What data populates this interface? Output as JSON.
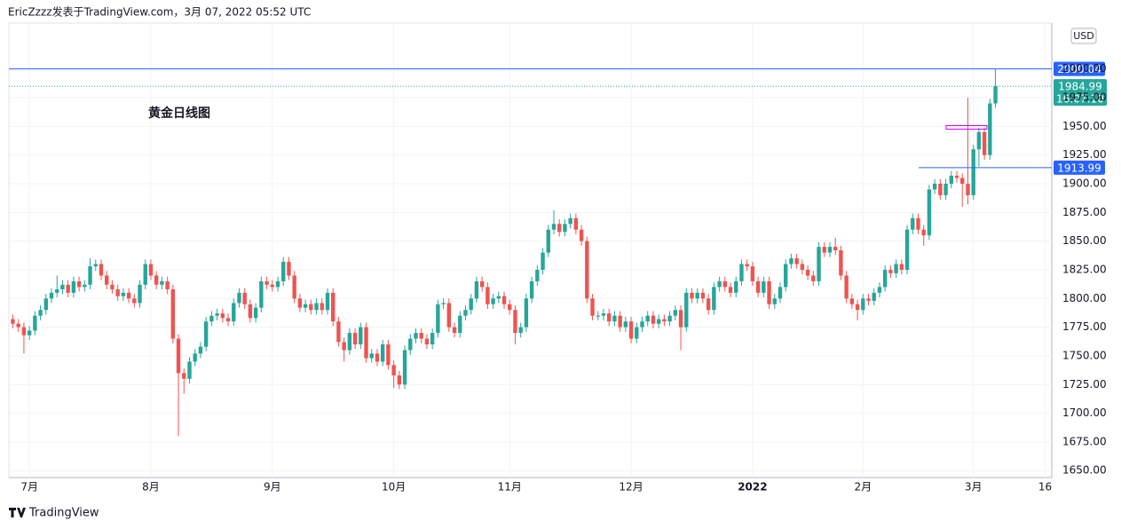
{
  "header": "EricZzzz发表于TradingView.com，3月 07, 2022 05:52 UTC",
  "footer": "TradingView",
  "chart_data": {
    "type": "candlestick",
    "title": "黄金日线图",
    "currency": "USD",
    "up_color": "#26a69a",
    "down_color": "#ef5350",
    "open": [
      1782,
      1778,
      1775,
      1768,
      1772,
      1785,
      1790,
      1800,
      1805,
      1808,
      1812,
      1805,
      1815,
      1810,
      1812,
      1828,
      1830,
      1820,
      1812,
      1808,
      1802,
      1805,
      1800,
      1796,
      1812,
      1830,
      1820,
      1812,
      1815,
      1808,
      1765,
      1735,
      1730,
      1745,
      1752,
      1758,
      1780,
      1785,
      1787,
      1783,
      1780,
      1796,
      1805,
      1795,
      1783,
      1792,
      1815,
      1812,
      1810,
      1815,
      1832,
      1820,
      1800,
      1792,
      1795,
      1790,
      1796,
      1790,
      1805,
      1780,
      1762,
      1755,
      1770,
      1760,
      1775,
      1748,
      1752,
      1745,
      1760,
      1742,
      1733,
      1725,
      1755,
      1765,
      1770,
      1765,
      1760,
      1770,
      1795,
      1796,
      1775,
      1770,
      1785,
      1790,
      1800,
      1815,
      1810,
      1795,
      1800,
      1802,
      1795,
      1790,
      1770,
      1775,
      1800,
      1815,
      1825,
      1840,
      1860,
      1865,
      1858,
      1865,
      1870,
      1860,
      1850,
      1800,
      1785,
      1785,
      1787,
      1780,
      1785,
      1775,
      1780,
      1765,
      1775,
      1780,
      1785,
      1778,
      1782,
      1780,
      1785,
      1790,
      1775,
      1805,
      1800,
      1805,
      1800,
      1790,
      1810,
      1815,
      1810,
      1805,
      1815,
      1830,
      1828,
      1815,
      1805,
      1815,
      1795,
      1800,
      1810,
      1830,
      1835,
      1830,
      1825,
      1820,
      1815,
      1845,
      1840,
      1845,
      1842,
      1820,
      1800,
      1795,
      1790,
      1800,
      1798,
      1805,
      1810,
      1825,
      1822,
      1830,
      1825,
      1860,
      1870,
      1860,
      1855,
      1895,
      1900,
      1890,
      1900,
      1907,
      1905,
      1900,
      1890,
      1930,
      1945,
      1925,
      1970
    ],
    "high": [
      1786,
      1782,
      1779,
      1776,
      1789,
      1794,
      1804,
      1809,
      1820,
      1816,
      1816,
      1819,
      1819,
      1816,
      1835,
      1834,
      1834,
      1824,
      1816,
      1812,
      1809,
      1809,
      1804,
      1816,
      1834,
      1834,
      1824,
      1819,
      1819,
      1812,
      1769,
      1739,
      1749,
      1756,
      1762,
      1784,
      1789,
      1791,
      1791,
      1787,
      1800,
      1809,
      1809,
      1799,
      1796,
      1819,
      1819,
      1816,
      1819,
      1836,
      1836,
      1824,
      1804,
      1799,
      1799,
      1800,
      1800,
      1809,
      1809,
      1784,
      1766,
      1774,
      1774,
      1779,
      1779,
      1756,
      1756,
      1764,
      1764,
      1746,
      1737,
      1759,
      1769,
      1774,
      1774,
      1769,
      1774,
      1799,
      1800,
      1800,
      1779,
      1789,
      1794,
      1804,
      1819,
      1819,
      1814,
      1804,
      1806,
      1806,
      1799,
      1794,
      1779,
      1804,
      1819,
      1829,
      1844,
      1864,
      1877,
      1869,
      1869,
      1874,
      1874,
      1864,
      1854,
      1804,
      1789,
      1791,
      1791,
      1789,
      1789,
      1784,
      1784,
      1779,
      1784,
      1789,
      1789,
      1786,
      1786,
      1789,
      1794,
      1794,
      1809,
      1809,
      1809,
      1809,
      1804,
      1814,
      1819,
      1819,
      1814,
      1819,
      1834,
      1834,
      1832,
      1819,
      1819,
      1819,
      1804,
      1814,
      1834,
      1839,
      1839,
      1834,
      1829,
      1824,
      1849,
      1849,
      1849,
      1853,
      1846,
      1824,
      1804,
      1799,
      1804,
      1804,
      1809,
      1814,
      1829,
      1829,
      1834,
      1834,
      1864,
      1874,
      1874,
      1864,
      1899,
      1904,
      1904,
      1904,
      1911,
      1911,
      1909,
      1975,
      1934,
      1949,
      1949,
      1974,
      2000
    ],
    "low": [
      1774,
      1771,
      1752,
      1764,
      1768,
      1781,
      1786,
      1796,
      1801,
      1804,
      1801,
      1801,
      1806,
      1806,
      1808,
      1824,
      1816,
      1808,
      1804,
      1798,
      1798,
      1796,
      1792,
      1792,
      1808,
      1816,
      1808,
      1808,
      1804,
      1761,
      1680,
      1717,
      1726,
      1741,
      1748,
      1754,
      1776,
      1781,
      1779,
      1776,
      1776,
      1792,
      1791,
      1779,
      1779,
      1788,
      1808,
      1806,
      1806,
      1811,
      1816,
      1796,
      1788,
      1788,
      1786,
      1786,
      1786,
      1786,
      1776,
      1758,
      1745,
      1751,
      1756,
      1756,
      1744,
      1744,
      1741,
      1741,
      1738,
      1722,
      1721,
      1721,
      1751,
      1761,
      1761,
      1756,
      1756,
      1766,
      1791,
      1771,
      1766,
      1766,
      1781,
      1786,
      1796,
      1806,
      1791,
      1791,
      1796,
      1791,
      1786,
      1760,
      1766,
      1771,
      1796,
      1811,
      1821,
      1836,
      1856,
      1854,
      1854,
      1861,
      1856,
      1846,
      1796,
      1781,
      1781,
      1781,
      1776,
      1776,
      1771,
      1771,
      1761,
      1761,
      1771,
      1776,
      1774,
      1774,
      1776,
      1776,
      1781,
      1755,
      1771,
      1796,
      1796,
      1796,
      1786,
      1786,
      1806,
      1806,
      1801,
      1801,
      1811,
      1824,
      1811,
      1801,
      1801,
      1791,
      1791,
      1796,
      1806,
      1826,
      1826,
      1821,
      1816,
      1811,
      1811,
      1836,
      1836,
      1838,
      1816,
      1796,
      1791,
      1781,
      1786,
      1794,
      1794,
      1801,
      1806,
      1818,
      1818,
      1821,
      1821,
      1856,
      1856,
      1846,
      1851,
      1891,
      1886,
      1886,
      1896,
      1901,
      1880,
      1882,
      1886,
      1915,
      1921,
      1921,
      1966
    ],
    "close": [
      1778,
      1775,
      1768,
      1772,
      1785,
      1790,
      1800,
      1805,
      1808,
      1812,
      1805,
      1815,
      1810,
      1812,
      1828,
      1830,
      1820,
      1812,
      1808,
      1802,
      1805,
      1800,
      1796,
      1812,
      1830,
      1820,
      1812,
      1815,
      1808,
      1765,
      1735,
      1730,
      1745,
      1752,
      1758,
      1780,
      1785,
      1787,
      1783,
      1780,
      1796,
      1805,
      1795,
      1783,
      1792,
      1815,
      1812,
      1810,
      1815,
      1832,
      1820,
      1800,
      1792,
      1795,
      1790,
      1796,
      1790,
      1805,
      1780,
      1762,
      1755,
      1770,
      1760,
      1775,
      1748,
      1752,
      1745,
      1760,
      1742,
      1733,
      1725,
      1755,
      1765,
      1770,
      1765,
      1760,
      1770,
      1795,
      1796,
      1775,
      1770,
      1785,
      1790,
      1800,
      1815,
      1810,
      1795,
      1800,
      1802,
      1795,
      1790,
      1770,
      1775,
      1800,
      1815,
      1825,
      1840,
      1860,
      1865,
      1858,
      1865,
      1870,
      1860,
      1850,
      1800,
      1785,
      1785,
      1787,
      1780,
      1785,
      1775,
      1780,
      1765,
      1775,
      1780,
      1785,
      1778,
      1782,
      1780,
      1785,
      1790,
      1775,
      1805,
      1800,
      1805,
      1800,
      1790,
      1810,
      1815,
      1810,
      1805,
      1815,
      1830,
      1828,
      1815,
      1805,
      1815,
      1795,
      1800,
      1810,
      1830,
      1835,
      1830,
      1825,
      1820,
      1815,
      1845,
      1840,
      1845,
      1842,
      1820,
      1800,
      1795,
      1790,
      1800,
      1798,
      1805,
      1810,
      1825,
      1822,
      1830,
      1825,
      1860,
      1870,
      1860,
      1855,
      1895,
      1900,
      1890,
      1900,
      1907,
      1905,
      1900,
      1890,
      1930,
      1945,
      1925,
      1970,
      1985
    ],
    "ylim": [
      1644,
      2040
    ],
    "yticks": [
      {
        "value": 1650,
        "label": "1650.00"
      },
      {
        "value": 1675,
        "label": "1675.00"
      },
      {
        "value": 1700,
        "label": "1700.00"
      },
      {
        "value": 1725,
        "label": "1725.00"
      },
      {
        "value": 1750,
        "label": "1750.00"
      },
      {
        "value": 1775,
        "label": "1775.00"
      },
      {
        "value": 1800,
        "label": "1800.00"
      },
      {
        "value": 1825,
        "label": "1825.00"
      },
      {
        "value": 1850,
        "label": "1850.00"
      },
      {
        "value": 1875,
        "label": "1875.00"
      },
      {
        "value": 1900,
        "label": "1900.00"
      },
      {
        "value": 1925,
        "label": "1925.00"
      },
      {
        "value": 1950,
        "label": "1950.00"
      },
      {
        "value": 1975,
        "label": "1975.00"
      },
      {
        "value": 2000,
        "label": "2000.00"
      }
    ],
    "xlim": [
      -0.72,
      188.2
    ],
    "xticks": [
      {
        "value": 3,
        "label": "7月"
      },
      {
        "value": 25,
        "label": "8月"
      },
      {
        "value": 47,
        "label": "9月"
      },
      {
        "value": 69,
        "label": "10月"
      },
      {
        "value": 90,
        "label": "11月"
      },
      {
        "value": 112,
        "label": "12月"
      },
      {
        "value": 134,
        "label": "2022"
      },
      {
        "value": 154,
        "label": "2月"
      },
      {
        "value": 174,
        "label": "3月"
      },
      {
        "value": 187,
        "label": "16"
      }
    ],
    "grid": true,
    "price_lines": [
      {
        "value": 2000.04,
        "color": "#2962ff"
      },
      {
        "value": 1913.99,
        "color": "#2962ff"
      }
    ],
    "last_price": 1984.99,
    "last_color": "#26a69a",
    "countdown": "16:07:10"
  }
}
